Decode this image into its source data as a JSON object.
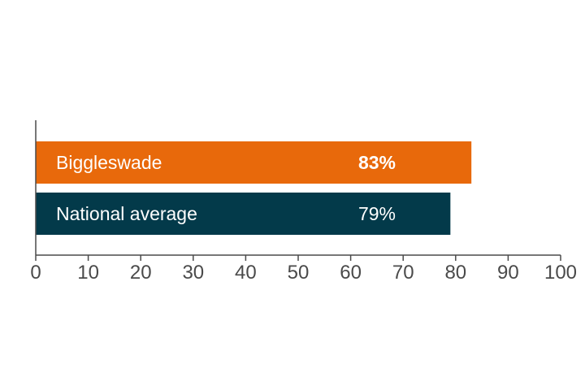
{
  "chart_data": {
    "type": "bar",
    "orientation": "horizontal",
    "categories": [
      "Biggleswade",
      "National average"
    ],
    "values": [
      83,
      79
    ],
    "value_labels": [
      "83%",
      "79%"
    ],
    "highlight": [
      true,
      false
    ],
    "colors": [
      "#e8690b",
      "#033a4a"
    ],
    "xlim": [
      0,
      100
    ],
    "x_ticks": [
      "0",
      "10",
      "20",
      "30",
      "40",
      "50",
      "60",
      "70",
      "80",
      "90",
      "100"
    ],
    "grid": false,
    "legend": "none"
  }
}
